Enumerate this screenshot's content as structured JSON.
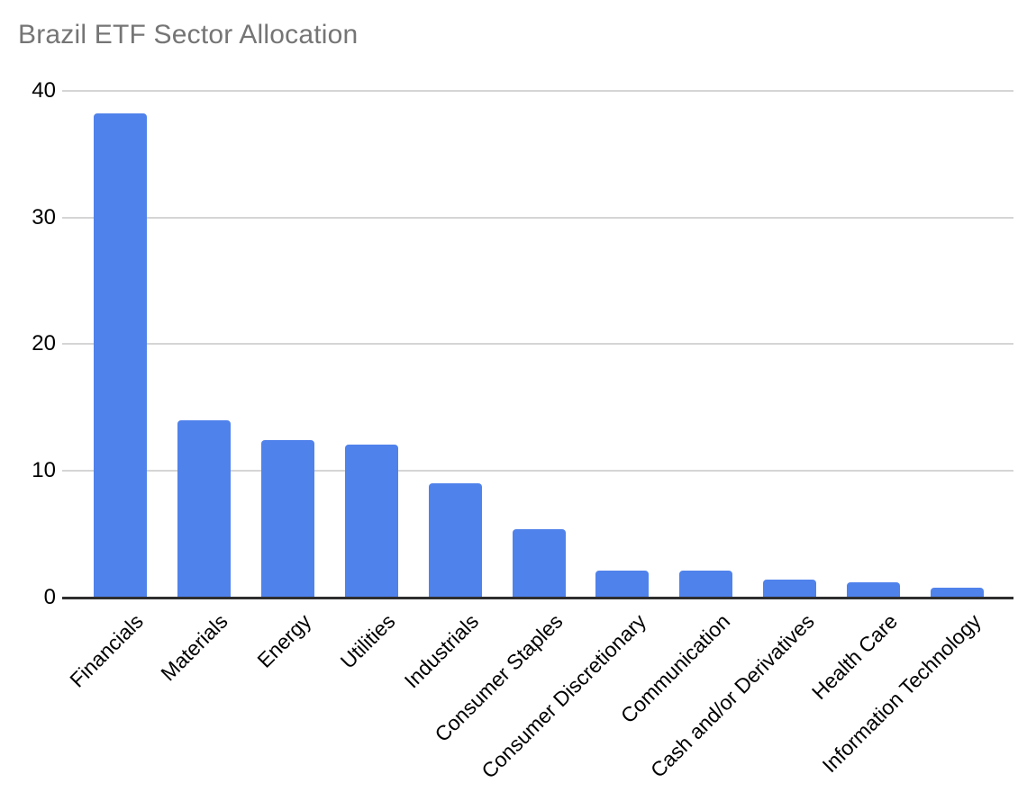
{
  "chart_data": {
    "type": "bar",
    "title": "Brazil ETF Sector Allocation",
    "categories": [
      "Financials",
      "Materials",
      "Energy",
      "Utilities",
      "Industrials",
      "Consumer Staples",
      "Consumer Discretionary",
      "Communication",
      "Cash and/or Derivatives",
      "Health Care",
      "Information Technology"
    ],
    "values": [
      38.2,
      14.0,
      12.4,
      12.1,
      9.0,
      5.4,
      2.1,
      2.1,
      1.4,
      1.2,
      0.8
    ],
    "xlabel": "",
    "ylabel": "",
    "ylim": [
      0,
      40
    ],
    "yticks": [
      0,
      10,
      20,
      30,
      40
    ],
    "grid": true,
    "legend": false,
    "x_label_rotation_deg": 45,
    "colors": {
      "bar": "#5082EB",
      "title": "#757575",
      "gridline": "#d5d5d5",
      "axis_line": "#2e2e2e",
      "tick_label": "#000000",
      "background": "#ffffff"
    }
  }
}
